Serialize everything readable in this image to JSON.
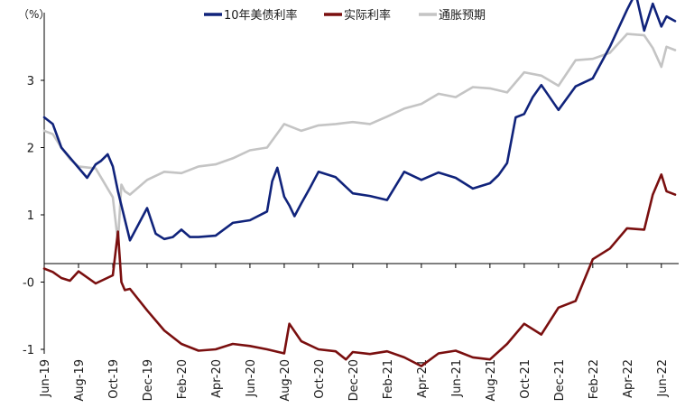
{
  "chart_data": {
    "type": "line",
    "unit_label": "（%）",
    "y_ticks": [
      "3",
      "2",
      "1",
      "-0",
      "-1"
    ],
    "ylim": [
      -1.0,
      3.85
    ],
    "x_ticks": [
      "Jun-19",
      "Aug-19",
      "Oct-19",
      "Dec-19",
      "Feb-20",
      "Apr-20",
      "Jun-20",
      "Aug-20",
      "Oct-20",
      "Dec-20",
      "Feb-21",
      "Apr-21",
      "Jun-21",
      "Aug-21",
      "Oct-21",
      "Dec-21",
      "Feb-22",
      "Apr-22",
      "Jun-22"
    ],
    "legend_position": "top",
    "grid": false,
    "x_index_range": [
      0,
      36.8
    ],
    "series": [
      {
        "name": "10年美债利率",
        "color": "#10237b",
        "x": [
          0,
          0.5,
          1,
          1.5,
          2,
          2.5,
          3,
          3.3,
          3.7,
          4,
          4.3,
          5,
          6,
          6.5,
          7,
          7.5,
          8,
          8.5,
          9,
          10,
          11,
          12,
          13,
          13.3,
          13.6,
          14,
          14.3,
          14.6,
          15,
          15.5,
          16,
          17,
          18,
          19,
          20,
          21,
          22,
          23,
          24,
          25,
          26,
          26.5,
          27,
          27.5,
          28,
          28.5,
          29,
          30,
          31,
          32,
          33,
          34,
          34.5,
          35,
          35.5,
          36,
          36.3,
          36.8
        ],
        "values": [
          2.45,
          2.35,
          2.0,
          1.85,
          1.7,
          1.55,
          1.75,
          1.8,
          1.9,
          1.72,
          1.35,
          0.62,
          1.1,
          0.72,
          0.64,
          0.67,
          0.78,
          0.67,
          0.67,
          0.69,
          0.88,
          0.92,
          1.05,
          1.5,
          1.7,
          1.27,
          1.14,
          0.98,
          1.17,
          1.4,
          1.64,
          1.56,
          1.32,
          1.28,
          1.22,
          1.64,
          1.52,
          1.63,
          1.55,
          1.39,
          1.47,
          1.59,
          1.77,
          2.45,
          2.5,
          2.75,
          2.93,
          2.56,
          2.91,
          3.03,
          3.5,
          4.05,
          4.3,
          3.74,
          4.14,
          3.8,
          3.95,
          3.88
        ]
      },
      {
        "name": "实际利率",
        "color": "#7a0f0f",
        "x": [
          0,
          0.5,
          1,
          1.5,
          2,
          3,
          4,
          4.3,
          4.5,
          4.7,
          5,
          6,
          7,
          8,
          9,
          10,
          11,
          12,
          13,
          14,
          14.3,
          15,
          16,
          17,
          17.6,
          18,
          19,
          20,
          21,
          22,
          23,
          24,
          25,
          26,
          27,
          28,
          29,
          30,
          31,
          32,
          33,
          34,
          35,
          35.5,
          36,
          36.3,
          36.8
        ],
        "values": [
          0.2,
          0.15,
          0.06,
          0.02,
          0.16,
          -0.02,
          0.1,
          0.75,
          0.0,
          -0.12,
          -0.1,
          -0.42,
          -0.72,
          -0.92,
          -1.02,
          -1.0,
          -0.92,
          -0.95,
          -1.0,
          -1.06,
          -0.62,
          -0.88,
          -1.0,
          -1.03,
          -1.15,
          -1.04,
          -1.07,
          -1.03,
          -1.12,
          -1.25,
          -1.06,
          -1.02,
          -1.12,
          -1.15,
          -0.92,
          -0.62,
          -0.78,
          -0.38,
          -0.28,
          0.34,
          0.5,
          0.8,
          0.78,
          1.3,
          1.6,
          1.35,
          1.3
        ]
      },
      {
        "name": "通胀预期",
        "color": "#c4c4c4",
        "x": [
          0,
          0.5,
          1,
          1.5,
          2,
          3,
          4,
          4.3,
          4.5,
          4.7,
          5,
          6,
          7,
          8,
          9,
          10,
          11,
          12,
          13,
          14,
          15,
          16,
          17,
          18,
          19,
          20,
          21,
          22,
          23,
          24,
          25,
          26,
          27,
          28,
          29,
          30,
          31,
          32,
          33,
          34,
          35,
          35.5,
          36,
          36.3,
          36.8
        ],
        "values": [
          2.25,
          2.2,
          2.0,
          1.83,
          1.72,
          1.69,
          1.26,
          0.6,
          1.45,
          1.35,
          1.3,
          1.52,
          1.64,
          1.62,
          1.72,
          1.75,
          1.84,
          1.96,
          2.0,
          2.35,
          2.25,
          2.33,
          2.35,
          2.38,
          2.35,
          2.46,
          2.58,
          2.65,
          2.8,
          2.75,
          2.9,
          2.88,
          2.82,
          3.12,
          3.07,
          2.92,
          3.3,
          3.32,
          3.41,
          3.69,
          3.67,
          3.48,
          3.2,
          3.5,
          3.45
        ]
      }
    ]
  }
}
